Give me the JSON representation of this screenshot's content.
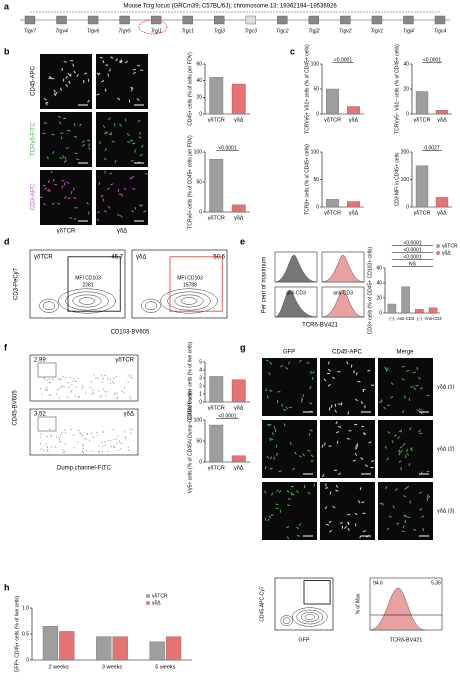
{
  "panels": {
    "labels": [
      "a",
      "b",
      "c",
      "d",
      "e",
      "f",
      "g",
      "h"
    ]
  },
  "locus": {
    "title": "Mouse Tcrg locus (GRCm39; C57BL/6J); chromosome 13: 19362194–19536926",
    "genes": [
      "Trgv7",
      "Trgv4",
      "Trgv6",
      "Trgv5",
      "Trgj1",
      "Trgc1",
      "Trgj3",
      "Trgc3",
      "Trgc2",
      "Trgj2",
      "Trgv2",
      "Trgv1",
      "Trgj4",
      "Trgc4"
    ]
  },
  "images_b": {
    "rows": [
      "CD45-APC",
      "TCRγδ-FITC",
      "CD3-APC"
    ],
    "columns": [
      "γδTCR",
      "γδΔ"
    ]
  },
  "flow_d": {
    "y_label": "CD3-PeCy7",
    "x_label": "CD103-BV605",
    "plots": [
      {
        "name": "γδTCR",
        "gate": 45.7,
        "mfi": "MFI CD103",
        "mfi_value": 2281
      },
      {
        "name": "γδΔ",
        "gate": 50.6,
        "mfi": "MFI CD103",
        "mfi_value": 15788
      }
    ]
  },
  "hist_e": {
    "y_label": "Per cent of maximum",
    "x_label": "TCRδ-BV421",
    "treatment": "anti-CD3"
  },
  "flow_f": {
    "y_label": "CD45-BV605",
    "x_label": "Dump channel-FITC",
    "plots": [
      {
        "name": "γδTCR",
        "gate": 2.99
      },
      {
        "name": "γδΔ",
        "gate": 3.52
      }
    ]
  },
  "images_g": {
    "columns": [
      "GFP",
      "CD45-APC",
      "Merge"
    ],
    "rows": [
      "γδΔ (1)",
      "γδΔ (2)",
      "γδΔ (3)"
    ],
    "flow": {
      "y_label": "CD45-APC-Cy7",
      "x_label": "GFP"
    },
    "hist": {
      "y_label": "% of Max",
      "x_label": "TCRδ-BV421",
      "left": 94.6,
      "right": 5.36
    }
  },
  "chart_data": [
    {
      "type": "bar",
      "y_label": "CD45+ cells (% of cells per FOV)",
      "categories": [
        "γδTCR",
        "γδΔ"
      ],
      "values": [
        44,
        36
      ],
      "colors": [
        "#9e9e9e",
        "#e57373"
      ],
      "ylim": [
        0,
        60
      ],
      "yticks": [
        0,
        20,
        40,
        60
      ]
    },
    {
      "type": "bar",
      "y_label": "TCRγδ+ cells (% of CD45+ cells per FOV)",
      "categories": [
        "γδTCR",
        "γδΔ"
      ],
      "values": [
        88,
        12
      ],
      "colors": [
        "#9e9e9e",
        "#e57373"
      ],
      "ylim": [
        0,
        100
      ],
      "yticks": [
        0,
        50,
        100
      ],
      "annotations": [
        "<0.0001"
      ]
    },
    {
      "type": "bar",
      "y_label": "TCRVγ5+ Vδ1+ cells (% of CD45+ cells)",
      "categories": [
        "γδTCR",
        "γδΔ"
      ],
      "values": [
        50,
        15
      ],
      "colors": [
        "#9e9e9e",
        "#e57373"
      ],
      "ylim": [
        0,
        100
      ],
      "yticks": [
        0,
        50,
        100
      ],
      "annotations": [
        "<0.0001"
      ]
    },
    {
      "type": "bar",
      "y_label": "TCRVγ5− Vδ1− cells (% of CD45+ cells)",
      "categories": [
        "γδTCR",
        "γδΔ"
      ],
      "values": [
        18,
        3
      ],
      "colors": [
        "#9e9e9e",
        "#e57373"
      ],
      "ylim": [
        0,
        40
      ],
      "yticks": [
        0,
        20,
        40
      ],
      "annotations": [
        "<0.0001"
      ]
    },
    {
      "type": "bar",
      "y_label": "TCRβ+ cells (% of CD45+ cells)",
      "categories": [
        "γδTCR",
        "γδΔ"
      ],
      "values": [
        14,
        10
      ],
      "colors": [
        "#9e9e9e",
        "#e57373"
      ],
      "ylim": [
        0,
        100
      ],
      "yticks": [
        0,
        50,
        100
      ]
    },
    {
      "type": "bar",
      "y_label": "CD3 MFI in CD45+ cells",
      "categories": [
        "γδTCR",
        "γδΔ"
      ],
      "values": [
        150,
        35
      ],
      "colors": [
        "#9e9e9e",
        "#e57373"
      ],
      "ylim": [
        0,
        200
      ],
      "yticks": [
        0,
        100,
        200
      ],
      "annotations": [
        "0.0027"
      ]
    },
    {
      "type": "bar",
      "y_label": "CD3+ cells (% of CD45+ CD103+ cells)",
      "categories": [
        "(–)",
        "Anti-CD3",
        "(–)",
        "Anti-CD3"
      ],
      "values": [
        12,
        35,
        5,
        7
      ],
      "colors": [
        "#9e9e9e",
        "#9e9e9e",
        "#e57373",
        "#e57373"
      ],
      "ylim": [
        0,
        60
      ],
      "yticks": [
        0,
        20,
        40,
        60
      ],
      "annotations": [
        "NS",
        "<0.0001",
        "<0.0001",
        "<0.0001"
      ],
      "legend": [
        {
          "name": "γδTCR",
          "color": "#9e9e9e"
        },
        {
          "name": "γδΔ",
          "color": "#e57373"
        }
      ]
    },
    {
      "type": "bar",
      "y_label": "CD45hi Dump− cells (% of live cells)",
      "categories": [
        "γδTCR",
        "γδΔ"
      ],
      "values": [
        3.2,
        2.8
      ],
      "colors": [
        "#9e9e9e",
        "#e57373"
      ],
      "ylim": [
        0,
        5
      ],
      "yticks": [
        0,
        1,
        2,
        3,
        4,
        5
      ]
    },
    {
      "type": "bar",
      "y_label": "Vγ5+ cells (% of CD45hi Dump− CD103+ cells)",
      "categories": [
        "γδTCR",
        "γδΔ"
      ],
      "values": [
        88,
        15
      ],
      "colors": [
        "#9e9e9e",
        "#e57373"
      ],
      "ylim": [
        0,
        100
      ],
      "yticks": [
        0,
        50,
        100
      ],
      "annotations": [
        "<0.0001"
      ]
    },
    {
      "type": "bar",
      "y_label": "GFP+ CD45+ cells (% of live cells)",
      "categories": [
        "2 weeks",
        "3 weeks",
        "5 weeks"
      ],
      "series": [
        {
          "name": "γδTCR",
          "color": "#9e9e9e",
          "values": [
            0.65,
            0.45,
            0.35
          ]
        },
        {
          "name": "γδΔ",
          "color": "#e57373",
          "values": [
            0.55,
            0.45,
            0.45
          ]
        }
      ],
      "ylim": [
        0,
        1
      ],
      "yticks": [
        0,
        0.5,
        {
          "value": 1,
          "label": "1.0"
        }
      ]
    }
  ]
}
